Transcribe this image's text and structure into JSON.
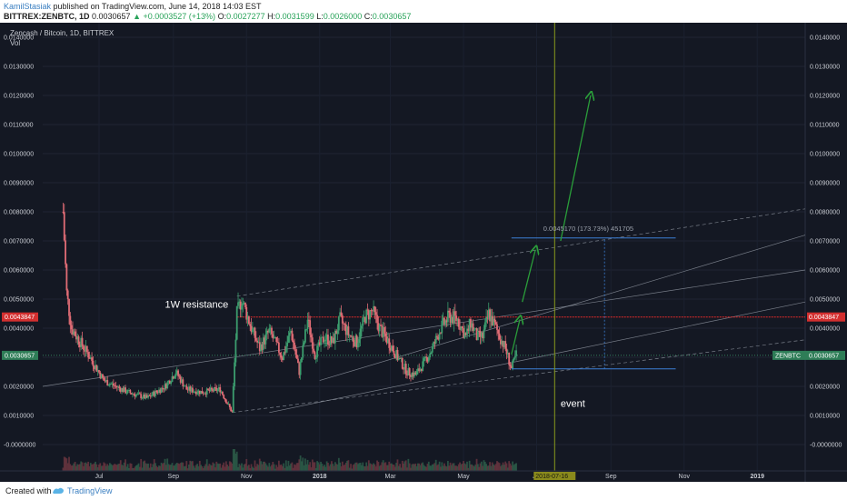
{
  "header": {
    "author": "KamilStasiak",
    "published": "published on TradingView.com, June 14, 2018 14:03 EST",
    "symbol": "BITTREX:ZENBTC, 1D",
    "price": "0.0030657",
    "change": "▲ +0.0003527 (+13%)",
    "o_label": "O:",
    "o_value": "0.0027277",
    "h_label": "H:",
    "h_value": "0.0031599",
    "l_label": "L:",
    "l_value": "0.0026000",
    "c_label": "C:",
    "c_value": "0.0030657"
  },
  "chart_data": {
    "type": "candlestick",
    "title": "Zencash / Bitcoin, 1D, BITTREX",
    "sub_label": "Vol",
    "ylim": [
      -0.001,
      0.0145
    ],
    "y_ticks": [
      "0.0140000",
      "0.0130000",
      "0.0120000",
      "0.0110000",
      "0.0100000",
      "0.0090000",
      "0.0080000",
      "0.0070000",
      "0.0060000",
      "0.0050000",
      "0.0040000",
      "0.0030000",
      "0.0020000",
      "0.0010000",
      "-0.0000000"
    ],
    "y_tick_values": [
      0.014,
      0.013,
      0.012,
      0.011,
      0.01,
      0.009,
      0.008,
      0.007,
      0.006,
      0.005,
      0.004,
      0.003,
      0.002,
      0.001,
      0.0
    ],
    "x_ticks": [
      "Jul",
      "Sep",
      "Nov",
      "2018",
      "Mar",
      "May",
      "Jul",
      "Sep",
      "Nov",
      "2019"
    ],
    "x_tick_dates": [
      "2017-07-01",
      "2017-09-01",
      "2017-11-01",
      "2018-01-01",
      "2018-03-01",
      "2018-05-01",
      "2018-07-01",
      "2018-09-01",
      "2018-11-01",
      "2019-01-01"
    ],
    "x_range": [
      "2017-05-15",
      "2019-02-10"
    ],
    "price_path": [
      [
        "2017-06-01",
        0.008
      ],
      [
        "2017-06-04",
        0.0052
      ],
      [
        "2017-06-08",
        0.004
      ],
      [
        "2017-06-14",
        0.0036
      ],
      [
        "2017-06-22",
        0.0031
      ],
      [
        "2017-07-05",
        0.0022
      ],
      [
        "2017-07-25",
        0.0018
      ],
      [
        "2017-08-10",
        0.0016
      ],
      [
        "2017-08-25",
        0.002
      ],
      [
        "2017-09-03",
        0.0025
      ],
      [
        "2017-09-12",
        0.0019
      ],
      [
        "2017-09-25",
        0.0018
      ],
      [
        "2017-10-10",
        0.0019
      ],
      [
        "2017-10-20",
        0.0011
      ],
      [
        "2017-10-24",
        0.0045
      ],
      [
        "2017-10-28",
        0.005
      ],
      [
        "2017-11-05",
        0.004
      ],
      [
        "2017-11-12",
        0.0033
      ],
      [
        "2017-11-20",
        0.0039
      ],
      [
        "2017-12-01",
        0.003
      ],
      [
        "2017-12-08",
        0.0039
      ],
      [
        "2017-12-15",
        0.0025
      ],
      [
        "2017-12-22",
        0.0043
      ],
      [
        "2017-12-28",
        0.0031
      ],
      [
        "2018-01-05",
        0.0037
      ],
      [
        "2018-01-12",
        0.0035
      ],
      [
        "2018-01-18",
        0.0043
      ],
      [
        "2018-01-25",
        0.0038
      ],
      [
        "2018-02-01",
        0.0035
      ],
      [
        "2018-02-08",
        0.0044
      ],
      [
        "2018-02-14",
        0.0046
      ],
      [
        "2018-02-20",
        0.004
      ],
      [
        "2018-02-28",
        0.0035
      ],
      [
        "2018-03-07",
        0.003
      ],
      [
        "2018-03-15",
        0.0025
      ],
      [
        "2018-03-22",
        0.0024
      ],
      [
        "2018-03-29",
        0.0028
      ],
      [
        "2018-04-05",
        0.0033
      ],
      [
        "2018-04-12",
        0.004
      ],
      [
        "2018-04-19",
        0.0044
      ],
      [
        "2018-04-26",
        0.0043
      ],
      [
        "2018-05-03",
        0.0037
      ],
      [
        "2018-05-07",
        0.0042
      ],
      [
        "2018-05-12",
        0.0037
      ],
      [
        "2018-05-17",
        0.0037
      ],
      [
        "2018-05-22",
        0.0045
      ],
      [
        "2018-05-28",
        0.004
      ],
      [
        "2018-06-05",
        0.0033
      ],
      [
        "2018-06-10",
        0.0026
      ],
      [
        "2018-06-14",
        0.0031
      ]
    ],
    "price_line_label": "0.0043847",
    "price_line_value": 0.0043847,
    "current_price_label": "0.0030657",
    "current_price_value": 0.0030657,
    "symbol_tag": "ZENBTC",
    "annotations": {
      "resistance": "1W resistance",
      "event": "event",
      "measure": "0.0045170 (173.73%) 451705",
      "event_date": "2018-07-16"
    },
    "colors": {
      "background": "#141823",
      "bull": "#3c9d6e",
      "bear": "#e06c75",
      "resistance_line": "#e52b2b",
      "channel": "#9aa0ab",
      "arrow": "#2a9d3a",
      "event_line": "#8a9a1c",
      "measure": "#3c7fd6"
    }
  },
  "footer": {
    "created": "Created with",
    "brand": "TradingView"
  }
}
